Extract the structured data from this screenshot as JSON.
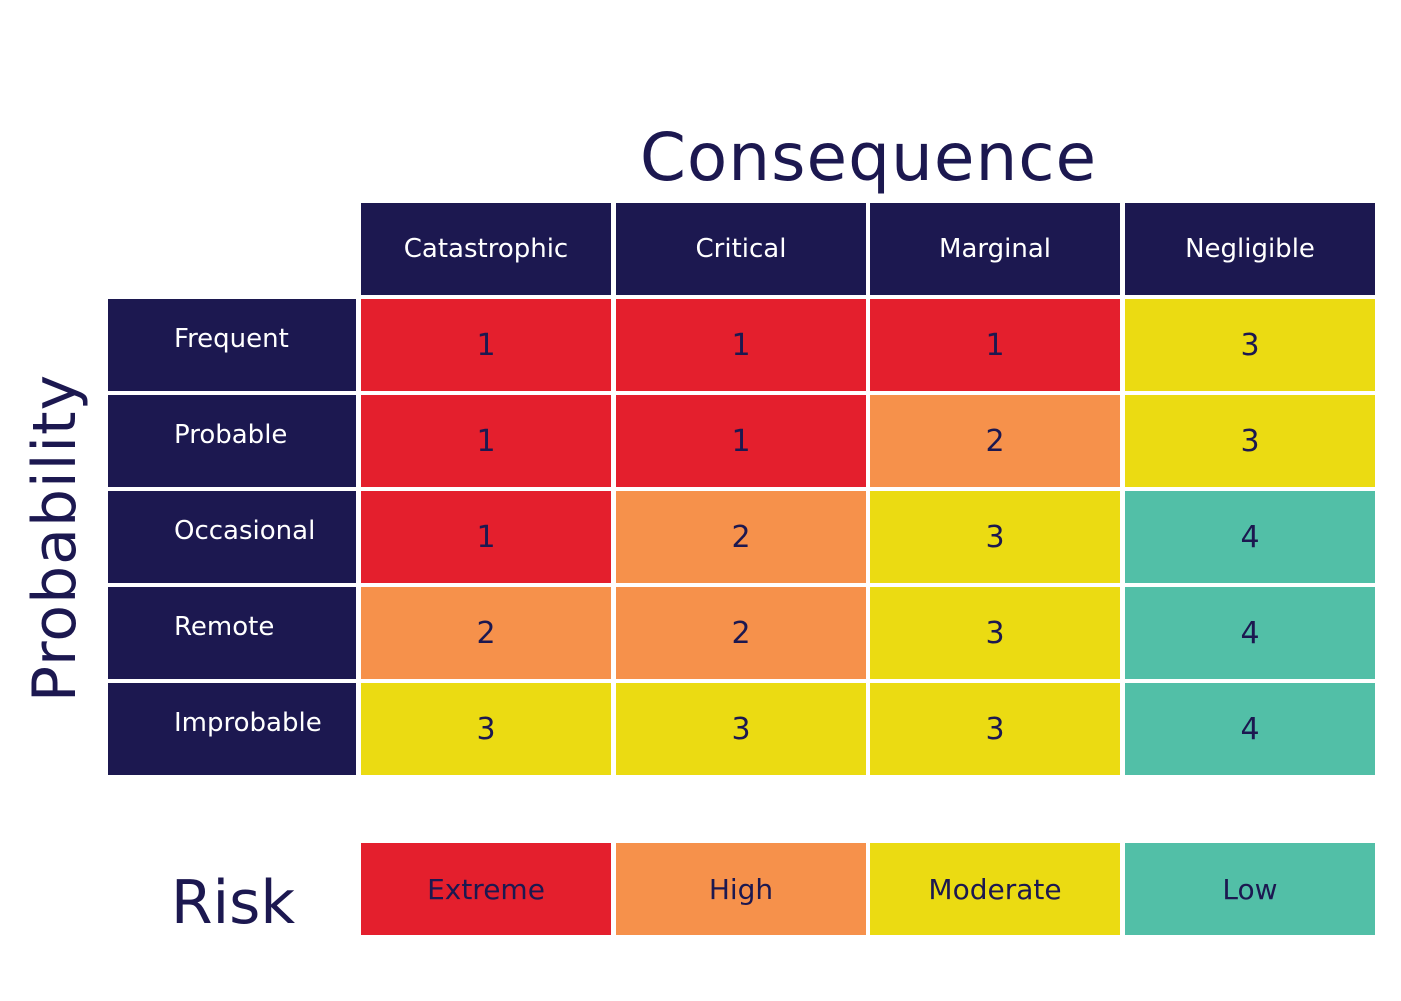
{
  "titles": {
    "consequence": "Consequence",
    "probability": "Probability",
    "risk": "Risk"
  },
  "consequences": [
    "Catastrophic",
    "Critical",
    "Marginal",
    "Negligible"
  ],
  "probabilities": [
    "Frequent",
    "Probable",
    "Occasional",
    "Remote",
    "Improbable"
  ],
  "matrix": [
    [
      "1",
      "1",
      "1",
      "3"
    ],
    [
      "1",
      "1",
      "2",
      "3"
    ],
    [
      "1",
      "2",
      "3",
      "4"
    ],
    [
      "2",
      "2",
      "3",
      "4"
    ],
    [
      "3",
      "3",
      "3",
      "4"
    ]
  ],
  "risk_levels": [
    {
      "score": "1",
      "label": "Extreme",
      "color": "#e41f2d"
    },
    {
      "score": "2",
      "label": "High",
      "color": "#f6914b"
    },
    {
      "score": "3",
      "label": "Moderate",
      "color": "#ebdb12"
    },
    {
      "score": "4",
      "label": "Low",
      "color": "#52bfa7"
    }
  ],
  "colors": {
    "navy": "#1c1850"
  }
}
